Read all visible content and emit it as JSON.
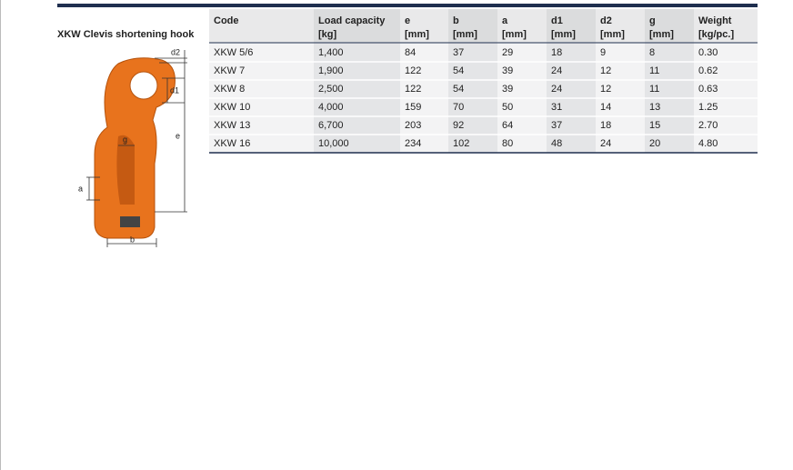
{
  "title": "XKW Clevis shortening hook",
  "table": {
    "headers": [
      [
        "Code"
      ],
      [
        "Load capacity",
        "[kg]"
      ],
      [
        "e",
        "[mm]"
      ],
      [
        "b",
        "[mm]"
      ],
      [
        "a",
        "[mm]"
      ],
      [
        "d1",
        "[mm]"
      ],
      [
        "d2",
        "[mm]"
      ],
      [
        "g",
        "[mm]"
      ],
      [
        "Weight",
        "[kg/pc.]"
      ]
    ],
    "rows": [
      [
        "XKW 5/6",
        "1,400",
        "84",
        "37",
        "29",
        "18",
        "9",
        "8",
        "0.30"
      ],
      [
        "XKW 7",
        "1,900",
        "122",
        "54",
        "39",
        "24",
        "12",
        "11",
        "0.62"
      ],
      [
        "XKW 8",
        "2,500",
        "122",
        "54",
        "39",
        "24",
        "12",
        "11",
        "0.63"
      ],
      [
        "XKW 10",
        "4,000",
        "159",
        "70",
        "50",
        "31",
        "14",
        "13",
        "1.25"
      ],
      [
        "XKW 13",
        "6,700",
        "203",
        "92",
        "64",
        "37",
        "18",
        "15",
        "2.70"
      ],
      [
        "XKW 16",
        "10,000",
        "234",
        "102",
        "80",
        "48",
        "24",
        "20",
        "4.80"
      ]
    ]
  },
  "diagram": {
    "labels": {
      "d2": "d2",
      "d1": "d1",
      "e": "e",
      "g": "g",
      "a": "a",
      "b": "b"
    }
  }
}
